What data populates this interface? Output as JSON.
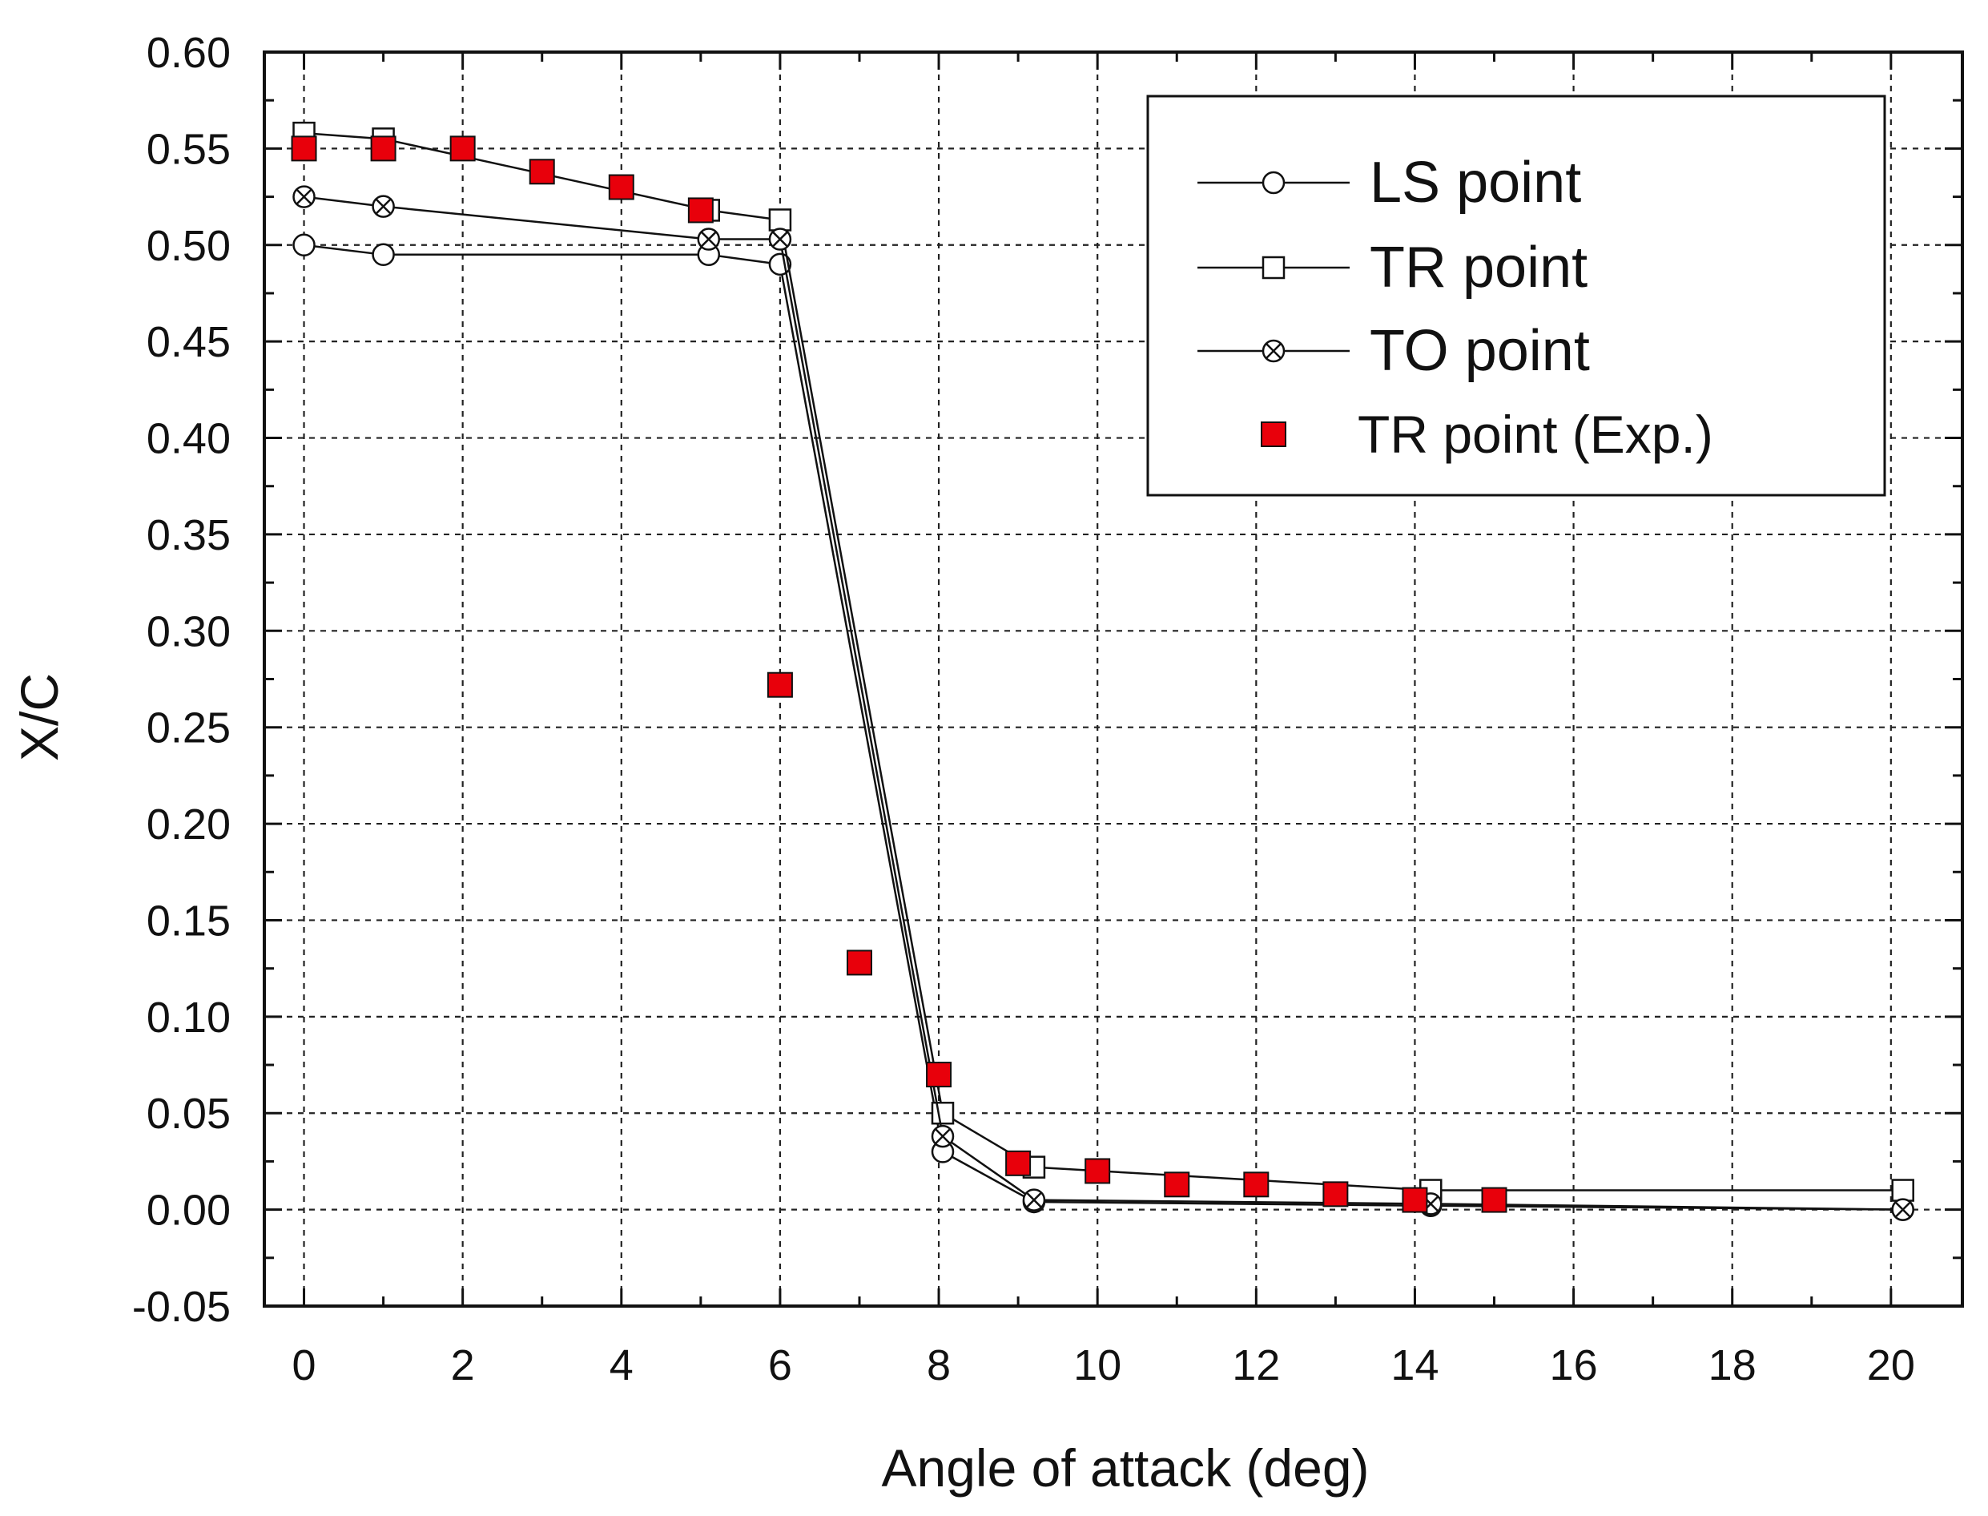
{
  "chart_data": {
    "type": "line",
    "xlabel": "Angle of attack (deg)",
    "ylabel": "X/C",
    "xlim": [
      -0.5,
      20.9
    ],
    "ylim": [
      -0.05,
      0.6
    ],
    "x_ticks": [
      0,
      2,
      4,
      6,
      8,
      10,
      12,
      14,
      16,
      18,
      20
    ],
    "x_tick_labels": [
      "0",
      "2",
      "4",
      "6",
      "8",
      "10",
      "12",
      "14",
      "16",
      "18",
      "20"
    ],
    "y_ticks": [
      -0.05,
      0.0,
      0.05,
      0.1,
      0.15,
      0.2,
      0.25,
      0.3,
      0.35,
      0.4,
      0.45,
      0.5,
      0.55,
      0.6
    ],
    "y_tick_labels": [
      "-0.05",
      "0.00",
      "0.05",
      "0.10",
      "0.15",
      "0.20",
      "0.25",
      "0.30",
      "0.35",
      "0.40",
      "0.45",
      "0.50",
      "0.55",
      "0.60"
    ],
    "grid": true,
    "legend_position": "top-right",
    "series": [
      {
        "name": "LS point",
        "marker": "open-circle",
        "line": true,
        "x": [
          0,
          1,
          5.1,
          6,
          8.05,
          9.2,
          14.2,
          20.15
        ],
        "y": [
          0.5,
          0.495,
          0.495,
          0.49,
          0.03,
          0.004,
          0.002,
          0.0
        ]
      },
      {
        "name": "TR point",
        "marker": "open-square",
        "line": true,
        "x": [
          0,
          1,
          5.1,
          6,
          8.05,
          9.2,
          14.2,
          20.15
        ],
        "y": [
          0.558,
          0.555,
          0.518,
          0.513,
          0.05,
          0.022,
          0.01,
          0.01
        ]
      },
      {
        "name": "TO point",
        "marker": "crossed-circle",
        "line": true,
        "x": [
          0,
          1,
          5.1,
          6,
          8.05,
          9.2,
          14.2,
          20.15
        ],
        "y": [
          0.525,
          0.52,
          0.503,
          0.503,
          0.038,
          0.005,
          0.003,
          0.0
        ]
      },
      {
        "name": "TR point (Exp.)",
        "marker": "filled-square",
        "line": false,
        "x": [
          0,
          1,
          2,
          3,
          4,
          5,
          6,
          7,
          8,
          9,
          10,
          11,
          12,
          13,
          14,
          15
        ],
        "y": [
          0.55,
          0.55,
          0.55,
          0.538,
          0.53,
          0.518,
          0.272,
          0.128,
          0.07,
          0.024,
          0.02,
          0.013,
          0.013,
          0.008,
          0.005,
          0.005
        ]
      }
    ]
  },
  "colors": {
    "axis": "#111111",
    "grid": "#222222",
    "series_line": "#111111",
    "exp_fill": "#e8000b",
    "exp_stroke": "#111111",
    "open_marker_fill": "#ffffff"
  }
}
